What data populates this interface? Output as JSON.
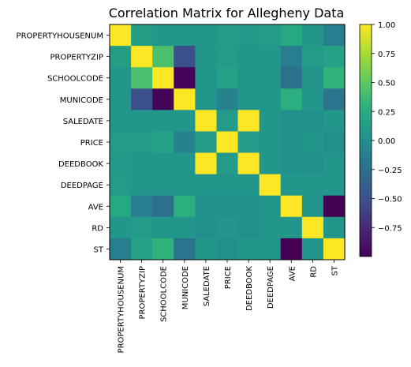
{
  "chart_data": {
    "type": "heatmap",
    "title": "Correlation Matrix for Allegheny Data",
    "labels": [
      "PROPERTYHOUSENUM",
      "PROPERTYZIP",
      "SCHOOLCODE",
      "MUNICODE",
      "SALEDATE",
      "PRICE",
      "DEEDBOOK",
      "DEEDPAGE",
      "AVE",
      "RD",
      "ST"
    ],
    "matrix": [
      [
        1.0,
        0.12,
        0.05,
        0.05,
        0.05,
        0.1,
        0.08,
        0.1,
        0.22,
        0.05,
        -0.13
      ],
      [
        0.12,
        1.0,
        0.42,
        -0.5,
        0.05,
        0.1,
        0.05,
        0.05,
        -0.15,
        0.1,
        0.15
      ],
      [
        0.05,
        0.42,
        1.0,
        -0.98,
        0.05,
        0.15,
        0.05,
        0.05,
        -0.25,
        0.05,
        0.3
      ],
      [
        0.05,
        -0.5,
        -0.98,
        1.0,
        0.05,
        -0.1,
        0.05,
        0.05,
        0.28,
        0.05,
        -0.22
      ],
      [
        0.05,
        0.05,
        0.05,
        0.05,
        1.0,
        0.1,
        1.0,
        0.05,
        0.0,
        0.0,
        0.05
      ],
      [
        0.1,
        0.1,
        0.15,
        -0.1,
        0.1,
        1.0,
        0.1,
        0.05,
        0.0,
        0.05,
        0.0
      ],
      [
        0.08,
        0.05,
        0.05,
        0.05,
        1.0,
        0.1,
        1.0,
        0.05,
        0.0,
        0.0,
        0.05
      ],
      [
        0.1,
        0.05,
        0.05,
        0.05,
        0.05,
        0.05,
        0.05,
        1.0,
        0.05,
        0.05,
        0.05
      ],
      [
        0.22,
        -0.15,
        -0.25,
        0.28,
        0.0,
        0.0,
        0.0,
        0.05,
        1.0,
        0.05,
        -1.0
      ],
      [
        0.05,
        0.1,
        0.05,
        0.05,
        0.0,
        0.05,
        0.0,
        0.05,
        0.05,
        1.0,
        0.05
      ],
      [
        -0.13,
        0.15,
        0.3,
        -0.22,
        0.05,
        0.0,
        0.05,
        0.05,
        -1.0,
        0.05,
        1.0
      ]
    ],
    "colorbar": {
      "min": -1.0,
      "max": 1.0,
      "ticks": [
        "1.00",
        "0.75",
        "0.50",
        "0.25",
        "0.00",
        "−0.25",
        "−0.50",
        "−0.75"
      ],
      "tick_values": [
        1.0,
        0.75,
        0.5,
        0.25,
        0.0,
        -0.25,
        -0.5,
        -0.75
      ]
    },
    "colormap": "viridis"
  }
}
